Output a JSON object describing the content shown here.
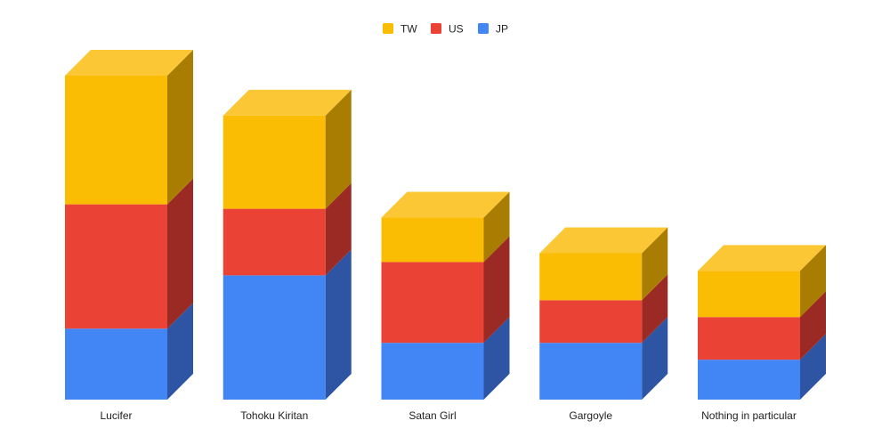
{
  "chart_data": {
    "type": "bar",
    "stacked": true,
    "style_3d": true,
    "grid": false,
    "legend_position": "top",
    "categories": [
      "Lucifer",
      "Tohoku Kiritan",
      "Satan Girl",
      "Gargoyle",
      "Nothing in particular"
    ],
    "series": [
      {
        "name": "JP",
        "color": "#4285f4",
        "side_color": "#2e55a3",
        "top_color": "#6d9ff7",
        "values": [
          16,
          28,
          12.8,
          12.8,
          9
        ]
      },
      {
        "name": "US",
        "color": "#ea4335",
        "side_color": "#9c2a24",
        "top_color": "#ee6a5e",
        "values": [
          28,
          15,
          18.2,
          9.6,
          9.6
        ]
      },
      {
        "name": "TW",
        "color": "#fbbc04",
        "side_color": "#a87d02",
        "top_color": "#fcc734",
        "values": [
          29,
          21,
          10,
          10.6,
          10.4
        ]
      }
    ],
    "legend_order": [
      "TW",
      "US",
      "JP"
    ],
    "ylim": [
      0,
      73
    ]
  }
}
